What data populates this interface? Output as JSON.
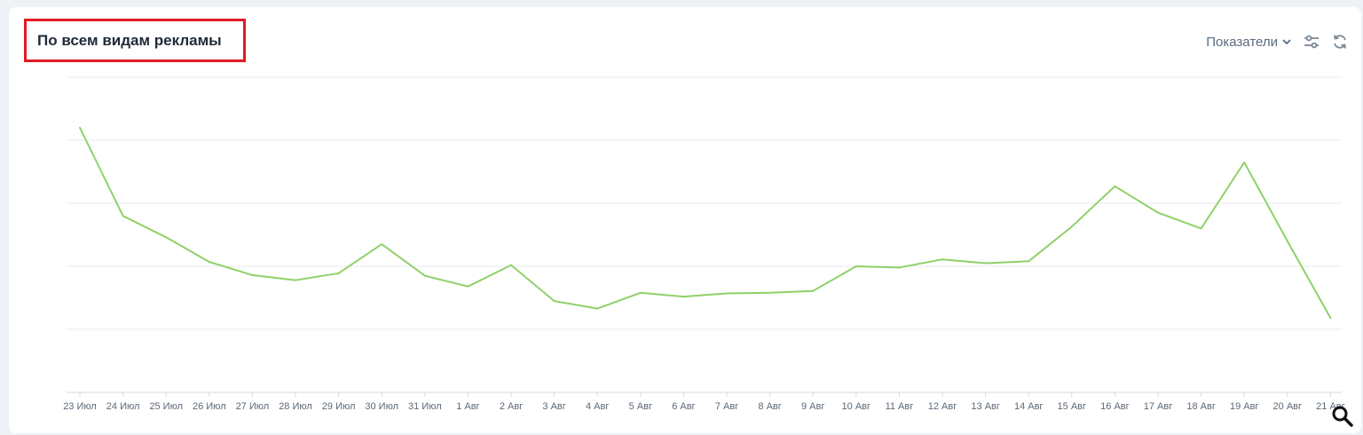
{
  "header": {
    "title": "По всем видам рекламы",
    "metrics_label": "Показатели",
    "icons": [
      "chevron-down-icon",
      "sliders-icon",
      "refresh-icon",
      "zoom-icon"
    ]
  },
  "chart_data": {
    "type": "line",
    "categories": [
      "23 Июл",
      "24 Июл",
      "25 Июл",
      "26 Июл",
      "27 Июл",
      "28 Июл",
      "29 Июл",
      "30 Июл",
      "31 Июл",
      "1 Авг",
      "2 Авг",
      "3 Авг",
      "4 Авг",
      "5 Авг",
      "6 Авг",
      "7 Авг",
      "8 Авг",
      "9 Авг",
      "10 Авг",
      "11 Авг",
      "12 Авг",
      "13 Авг",
      "14 Авг",
      "15 Авг",
      "16 Авг",
      "17 Авг",
      "18 Авг",
      "19 Авг",
      "20 Авг",
      "21 Авг"
    ],
    "series": [
      {
        "values": [
          4.2,
          2.8,
          2.46,
          2.07,
          1.86,
          1.78,
          1.89,
          2.35,
          1.85,
          1.68,
          2.02,
          1.45,
          1.33,
          1.58,
          1.52,
          1.57,
          1.58,
          1.61,
          2.0,
          1.98,
          2.11,
          2.05,
          2.08,
          2.63,
          3.27,
          2.85,
          2.6,
          3.65,
          2.4,
          1.18
        ]
      }
    ],
    "ylim": [
      0,
      5
    ],
    "grid": true,
    "colors": {
      "line": "#8fd16a",
      "grid": "#e6e9ee",
      "axis": "#d3d8df"
    }
  }
}
